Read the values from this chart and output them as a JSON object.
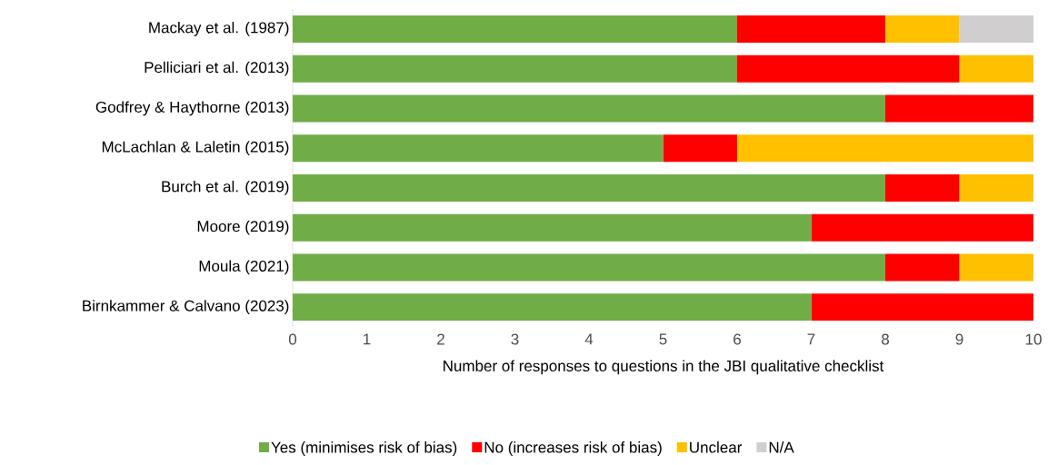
{
  "chart_data": {
    "type": "bar",
    "orientation": "horizontal",
    "stacked": true,
    "xlabel": "Number of responses to questions in the JBI qualitative checklist",
    "categories": [
      "Mackay et al. (1987)",
      "Pelliciari et al. (2013)",
      "Godfrey & Haythorne (2013)",
      "McLachlan & Laletin (2015)",
      "Burch et al. (2019)",
      "Moore (2019)",
      "Moula (2021)",
      "Birnkammer & Calvano (2023)"
    ],
    "series": [
      {
        "name": "Yes (minimises risk of bias)",
        "color": "#70ad47",
        "values": [
          6,
          6,
          8,
          5,
          8,
          7,
          8,
          7
        ]
      },
      {
        "name": "No (increases risk of bias)",
        "color": "#ff0000",
        "values": [
          2,
          3,
          2,
          1,
          1,
          3,
          1,
          3
        ]
      },
      {
        "name": "Unclear",
        "color": "#ffc000",
        "values": [
          1,
          1,
          0,
          4,
          1,
          0,
          1,
          0
        ]
      },
      {
        "name": "N/A",
        "color": "#d0cece",
        "values": [
          1,
          0,
          0,
          0,
          0,
          0,
          0,
          0
        ]
      }
    ],
    "xlim": [
      0,
      10
    ],
    "xticks": [
      0,
      1,
      2,
      3,
      4,
      5,
      6,
      7,
      8,
      9,
      10
    ],
    "grid": false,
    "legend": "bottom"
  }
}
